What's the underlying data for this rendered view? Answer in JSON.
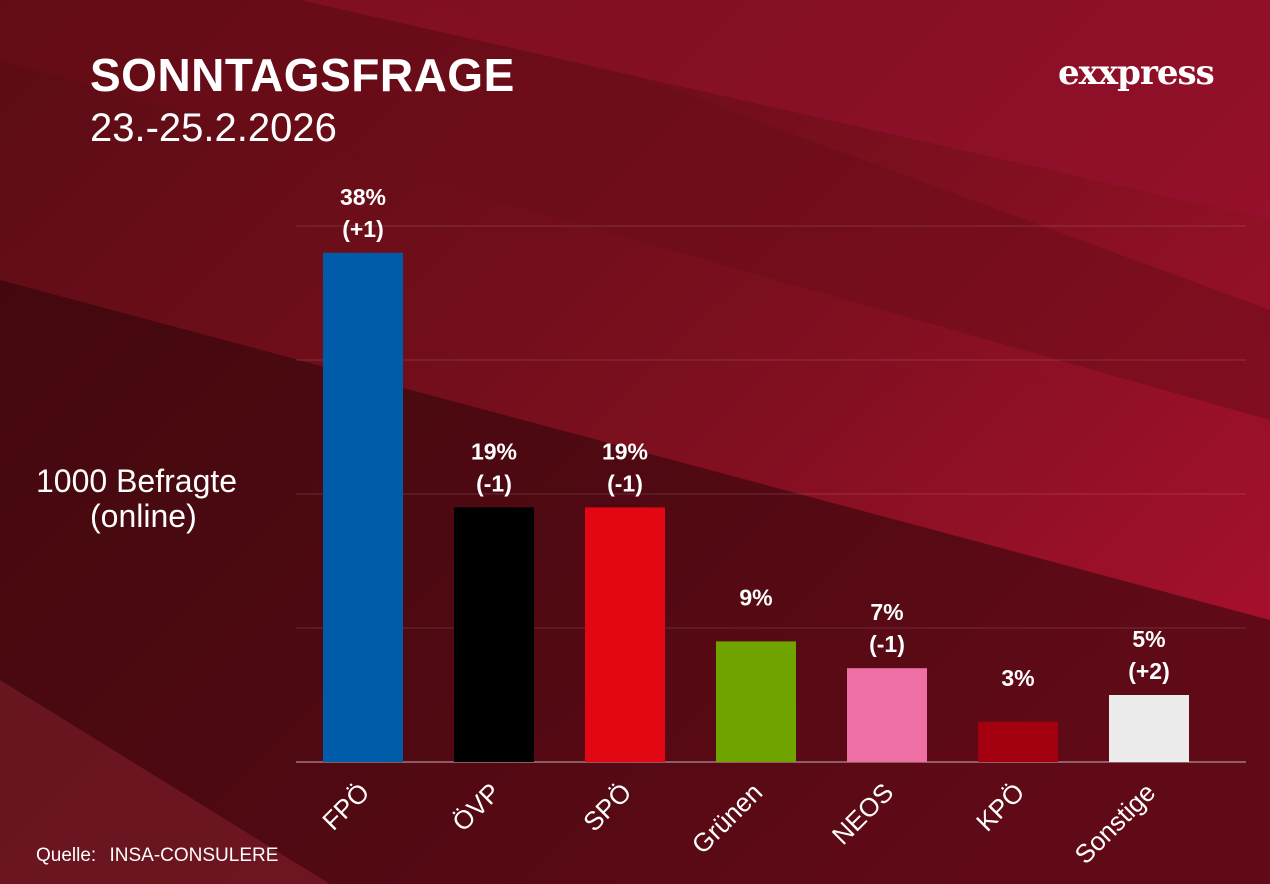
{
  "header": {
    "title": "SONNTAGSFRAGE",
    "date": "23.-25.2.2026",
    "logo": "exxpress"
  },
  "respondents": {
    "line1": "1000 Befragte",
    "line2": "(online)"
  },
  "source": {
    "label": "Quelle:",
    "value": "INSA-CONSULERE"
  },
  "chart_data": {
    "type": "bar",
    "title": "SONNTAGSFRAGE",
    "subtitle": "23.-25.2.2026",
    "xlabel": "",
    "ylabel": "",
    "ylim": [
      0,
      40
    ],
    "grid": true,
    "categories": [
      "FPÖ",
      "ÖVP",
      "SPÖ",
      "Grünen",
      "NEOS",
      "KPÖ",
      "Sonstige"
    ],
    "values": [
      38,
      19,
      19,
      9,
      7,
      3,
      5
    ],
    "changes": [
      "(+1)",
      "(-1)",
      "(-1)",
      "",
      "(-1)",
      "",
      "(+2)"
    ],
    "value_labels": [
      "38%",
      "19%",
      "19%",
      "9%",
      "7%",
      "3%",
      "5%"
    ],
    "colors": [
      "#005ca9",
      "#000000",
      "#e30613",
      "#6ea300",
      "#ee6fa4",
      "#a30010",
      "#ececec"
    ]
  }
}
